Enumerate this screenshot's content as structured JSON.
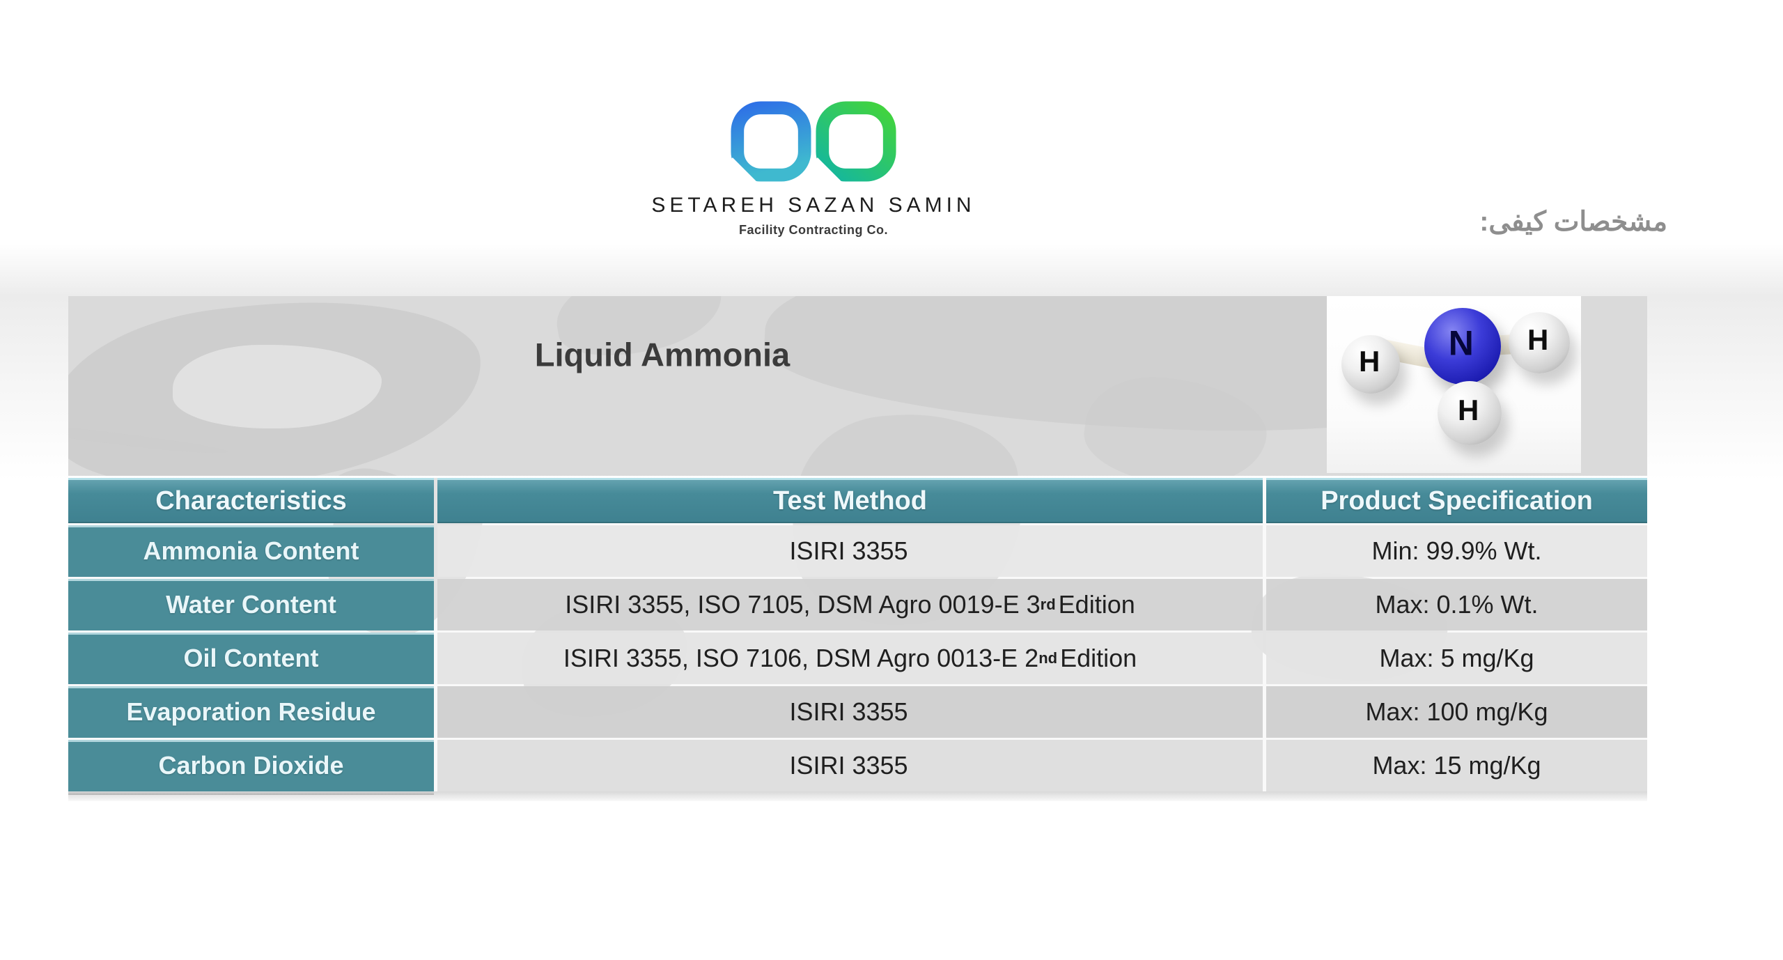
{
  "brand": {
    "name": "SETAREH SAZAN SAMIN",
    "subtitle": "Facility Contracting Co."
  },
  "caption_fa": "مشخصات کیفی:",
  "banner": {
    "title": "Liquid Ammonia"
  },
  "molecule": {
    "nitrogen_label": "N",
    "hydrogen_label": "H"
  },
  "table": {
    "columns": [
      "Characteristics",
      "Test Method",
      "Product Specification"
    ],
    "rows": [
      {
        "characteristic": "Ammonia Content",
        "method_pre": "ISIRI 3355",
        "method_sup": "",
        "method_post": "",
        "spec": "Min: 99.9% Wt."
      },
      {
        "characteristic": "Water Content",
        "method_pre": "ISIRI 3355, ISO 7105, DSM Agro 0019-E 3",
        "method_sup": "rd",
        "method_post": " Edition",
        "spec": "Max: 0.1% Wt."
      },
      {
        "characteristic": "Oil Content",
        "method_pre": "ISIRI 3355, ISO 7106, DSM Agro 0013-E 2",
        "method_sup": "nd",
        "method_post": " Edition",
        "spec": "Max: 5 mg/Kg"
      },
      {
        "characteristic": "Evaporation Residue",
        "method_pre": "ISIRI 3355",
        "method_sup": "",
        "method_post": "",
        "spec": "Max: 100 mg/Kg"
      },
      {
        "characteristic": "Carbon Dioxide",
        "method_pre": "ISIRI 3355",
        "method_sup": "",
        "method_post": "",
        "spec": "Max: 15 mg/Kg"
      }
    ]
  },
  "colors": {
    "header_teal": "#478B99",
    "cell_teal": "#4A8C98",
    "header_top_line": "#B7E2EA",
    "banner_gray": "#DADADA",
    "map_gray": "#CBCBCB",
    "text_dark": "#1F1F1F",
    "caption_gray": "#8E8E8E",
    "logo_blue_start": "#2E71E6",
    "logo_blue_end": "#3FB9CF",
    "logo_green_start": "#41D33F",
    "logo_green_end": "#15B79D",
    "nitrogen_blue": "#1D1DB2"
  }
}
